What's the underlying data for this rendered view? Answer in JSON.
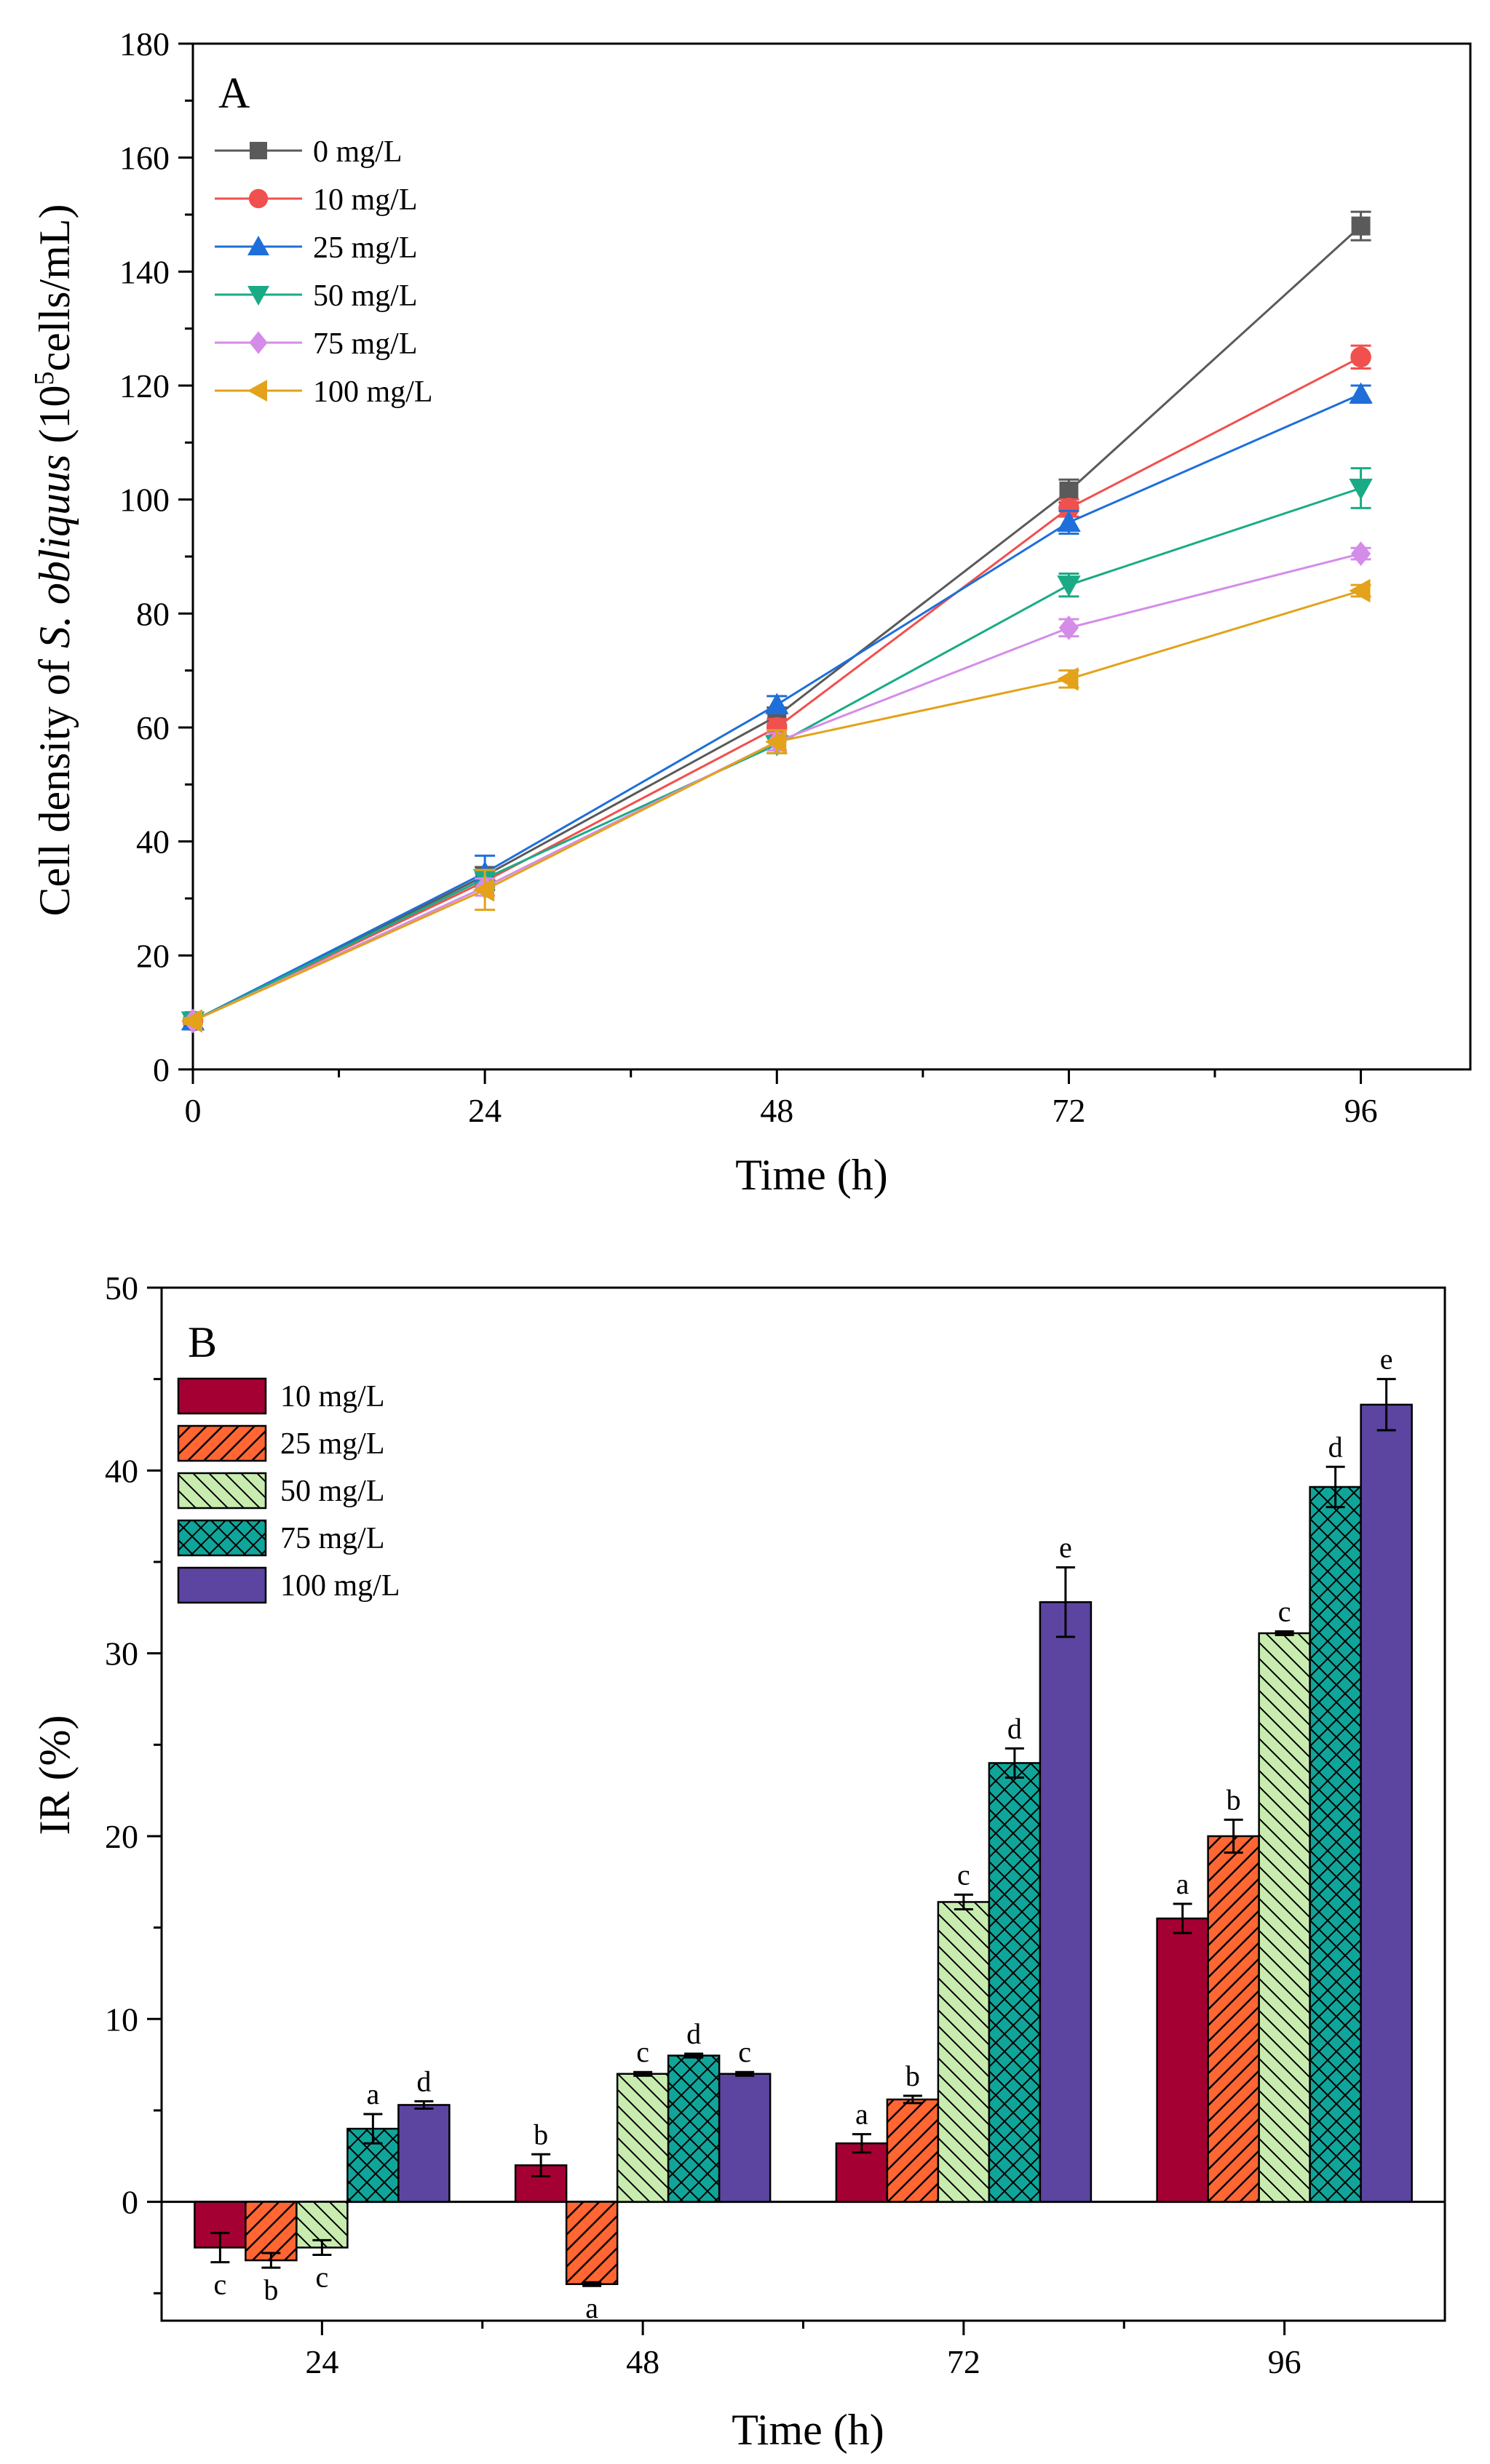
{
  "chart_data": [
    {
      "type": "line",
      "panel_label": "A",
      "title": "",
      "xlabel": "Time (h)",
      "ylabel_pre": "Cell density of ",
      "ylabel_italic": "S. obliquus",
      "ylabel_post1": " (10",
      "ylabel_sup": "5",
      "ylabel_post2": "cells/mL)",
      "xlim": [
        0,
        105
      ],
      "ylim": [
        0,
        180
      ],
      "xticks": [
        0,
        24,
        48,
        72,
        96
      ],
      "yticks": [
        0,
        20,
        40,
        60,
        80,
        100,
        120,
        140,
        160,
        180
      ],
      "x": [
        0,
        24,
        48,
        72,
        96
      ],
      "legend_position": "top-left",
      "series": [
        {
          "name": "0 mg/L",
          "color": "#5a5a5a",
          "marker": "square",
          "values": [
            8.5,
            34,
            62,
            101.5,
            148
          ],
          "errors": [
            0.5,
            1.5,
            1.5,
            2,
            2.5
          ]
        },
        {
          "name": "10 mg/L",
          "color": "#f0504e",
          "marker": "circle",
          "values": [
            8.5,
            33,
            60,
            98.5,
            125
          ],
          "errors": [
            0.5,
            1.5,
            1.5,
            1.5,
            2
          ]
        },
        {
          "name": "25 mg/L",
          "color": "#1e6fd9",
          "marker": "triangle-up",
          "values": [
            8.5,
            34.5,
            64,
            96,
            118.5
          ],
          "errors": [
            0.5,
            3,
            1.5,
            2,
            1.5
          ]
        },
        {
          "name": "50 mg/L",
          "color": "#1aab86",
          "marker": "triangle-down",
          "values": [
            8.5,
            33.5,
            57,
            85,
            102
          ],
          "errors": [
            0.5,
            1.5,
            1.5,
            2,
            3.5
          ]
        },
        {
          "name": "75 mg/L",
          "color": "#d58ce8",
          "marker": "diamond",
          "values": [
            8.5,
            32,
            57.5,
            77.5,
            90.5
          ],
          "errors": [
            0.5,
            1.5,
            1.5,
            1.5,
            1
          ]
        },
        {
          "name": "100 mg/L",
          "color": "#e3a21a",
          "marker": "triangle-left",
          "values": [
            8.5,
            31.5,
            57.5,
            68.5,
            84
          ],
          "errors": [
            0.5,
            3.5,
            2,
            1.5,
            1
          ]
        }
      ]
    },
    {
      "type": "bar",
      "panel_label": "B",
      "title": "",
      "xlabel": "Time (h)",
      "ylabel": "IR (%)",
      "ylim": [
        -6.5,
        50
      ],
      "yticks": [
        0,
        10,
        20,
        30,
        40,
        50
      ],
      "categories": [
        "24",
        "48",
        "72",
        "96"
      ],
      "legend_position": "top-left",
      "series": [
        {
          "name": "10 mg/L",
          "color": "#a50034",
          "pattern": "solid",
          "values": [
            -2.5,
            2,
            3.2,
            15.5
          ],
          "errors": [
            0.8,
            0.6,
            0.5,
            0.8
          ],
          "labels": [
            "c",
            "b",
            "a",
            "a"
          ]
        },
        {
          "name": "25 mg/L",
          "color": "#ff6633",
          "pattern": "diag",
          "values": [
            -3.2,
            -4.5,
            5.6,
            20
          ],
          "errors": [
            0.4,
            0.1,
            0.2,
            0.9
          ],
          "labels": [
            "b",
            "a",
            "b",
            "b"
          ]
        },
        {
          "name": "50 mg/L",
          "color": "#c8ecb0",
          "pattern": "antidiag",
          "values": [
            -2.5,
            7,
            16.4,
            31.1
          ],
          "errors": [
            0.4,
            0.1,
            0.4,
            0.1
          ],
          "labels": [
            "c",
            "c",
            "c",
            "c"
          ]
        },
        {
          "name": "75 mg/L",
          "color": "#10a59a",
          "pattern": "cross",
          "values": [
            4,
            8,
            24,
            39.1
          ],
          "errors": [
            0.8,
            0.1,
            0.8,
            1.1
          ],
          "labels": [
            "a",
            "d",
            "d",
            "d"
          ]
        },
        {
          "name": "100 mg/L",
          "color": "#5b45a0",
          "pattern": "solid",
          "values": [
            5.3,
            7,
            32.8,
            43.6
          ],
          "errors": [
            0.2,
            0.1,
            1.9,
            1.4
          ],
          "labels": [
            "d",
            "c",
            "e",
            "e"
          ]
        }
      ]
    }
  ]
}
